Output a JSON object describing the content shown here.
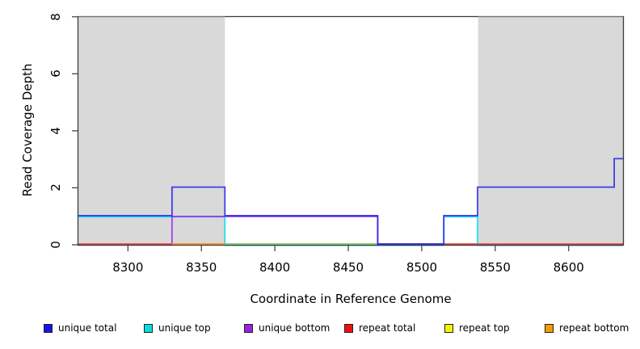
{
  "chart_data": {
    "type": "line",
    "subtype": "step-coverage",
    "title": "",
    "xlabel": "Coordinate in Reference Genome",
    "ylabel": "Read Coverage Depth",
    "xlim": [
      8266,
      8637
    ],
    "ylim": [
      0,
      8
    ],
    "xticks": [
      8300,
      8350,
      8400,
      8450,
      8500,
      8550,
      8600
    ],
    "yticks": [
      0,
      2,
      4,
      6,
      8
    ],
    "grid": "off",
    "legend_position": "bottom",
    "shade_color": "#d9d9d9",
    "box_color": "#3a3a3a",
    "shaded_regions": [
      {
        "label": "repeat-region-left",
        "from": 8266,
        "to": 8366
      },
      {
        "label": "repeat-region-right",
        "from": 8538,
        "to": 8637
      }
    ],
    "series": [
      {
        "name": "repeat top",
        "color": "#f2f200",
        "z": 1,
        "dy": 0,
        "steps": [
          [
            8266,
            0
          ]
        ]
      },
      {
        "name": "repeat bottom",
        "color": "#f59c00",
        "z": 2,
        "dy": 0,
        "steps": [
          [
            8266,
            0
          ]
        ]
      },
      {
        "name": "unique top",
        "color": "#00e0ea",
        "z": 3,
        "dy": 1.4,
        "steps": [
          [
            8266,
            1
          ],
          [
            8366,
            0
          ],
          [
            8515,
            1
          ],
          [
            8538,
            0
          ]
        ]
      },
      {
        "name": "unique bottom",
        "color": "#9d2ae8",
        "z": 4,
        "dy": 1.0,
        "steps": [
          [
            8266,
            0
          ],
          [
            8330,
            1
          ],
          [
            8470,
            0
          ]
        ]
      },
      {
        "name": "repeat total",
        "color": "#e83a50",
        "z": 5,
        "dy": 0,
        "steps": [
          [
            8266,
            0
          ]
        ]
      },
      {
        "name": "unique total",
        "color": "#2727ee",
        "z": 7,
        "dy": 0,
        "steps": [
          [
            8266,
            1
          ],
          [
            8330,
            2
          ],
          [
            8366,
            1
          ],
          [
            8470,
            0
          ],
          [
            8515,
            1
          ],
          [
            8538,
            2
          ],
          [
            8631,
            3
          ]
        ]
      }
    ],
    "baseline_overlap_blends": [
      {
        "from": 8330,
        "to": 8466,
        "color": "#ff9e1e",
        "z": 6,
        "note": "orange visible at depth 0"
      },
      {
        "from": 8366,
        "to": 8470,
        "color": "#84d884",
        "z": 6,
        "note": "green blend of top/bottom lines at depth 0"
      },
      {
        "from": 8470,
        "to": 8515,
        "color": "#6b58f0",
        "z": 6,
        "note": "blue-violet blend at depth 0"
      }
    ],
    "legend": [
      {
        "label": "unique total",
        "color": "#1515e8"
      },
      {
        "label": "unique top",
        "color": "#00e0e0"
      },
      {
        "label": "unique bottom",
        "color": "#9d1fe0"
      },
      {
        "label": "repeat total",
        "color": "#ee1111"
      },
      {
        "label": "repeat top",
        "color": "#f5f500"
      },
      {
        "label": "repeat bottom",
        "color": "#f59c00"
      }
    ]
  }
}
